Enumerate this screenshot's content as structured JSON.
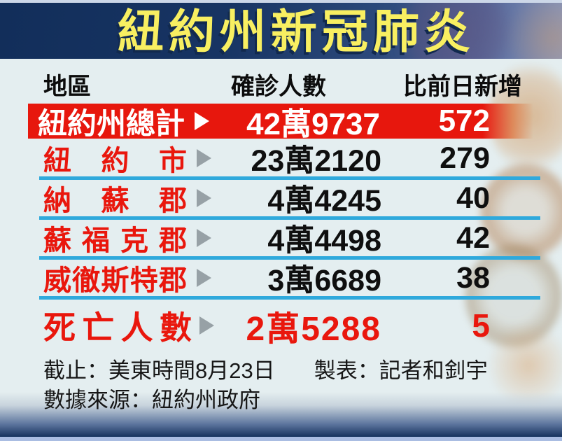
{
  "title": "紐約州新冠肺炎",
  "colors": {
    "title_text": "#f8ef61",
    "title_band_navy": "#122e5a",
    "highlight_red": "#e7170d",
    "region_red": "#e9170d",
    "separator_cyan": "#2fa9dc",
    "content_bg": "#e4eef0",
    "bottom_strip": "#aabde2"
  },
  "table": {
    "headers": [
      "地區",
      "確診人數",
      "比前日新增"
    ],
    "rows": [
      {
        "region": "紐約州總計",
        "confirmed": "42萬9737",
        "increase": "572",
        "style": "total"
      },
      {
        "region": "紐約市",
        "confirmed": "23萬2120",
        "increase": "279",
        "style": "normal"
      },
      {
        "region": "納蘇郡",
        "confirmed": "4萬4245",
        "increase": "40",
        "style": "normal"
      },
      {
        "region": "蘇福克郡",
        "confirmed": "4萬4498",
        "increase": "42",
        "style": "normal"
      },
      {
        "region": "威徹斯特郡",
        "confirmed": "3萬6689",
        "increase": "38",
        "style": "normal"
      },
      {
        "region": "死亡人數",
        "confirmed": "2萬5288",
        "increase": "5",
        "style": "deaths"
      }
    ]
  },
  "footer": {
    "cutoff": "截止：美東時間8月23日",
    "credit": "製表：記者和釗宇",
    "source": "數據來源：紐約州政府"
  }
}
